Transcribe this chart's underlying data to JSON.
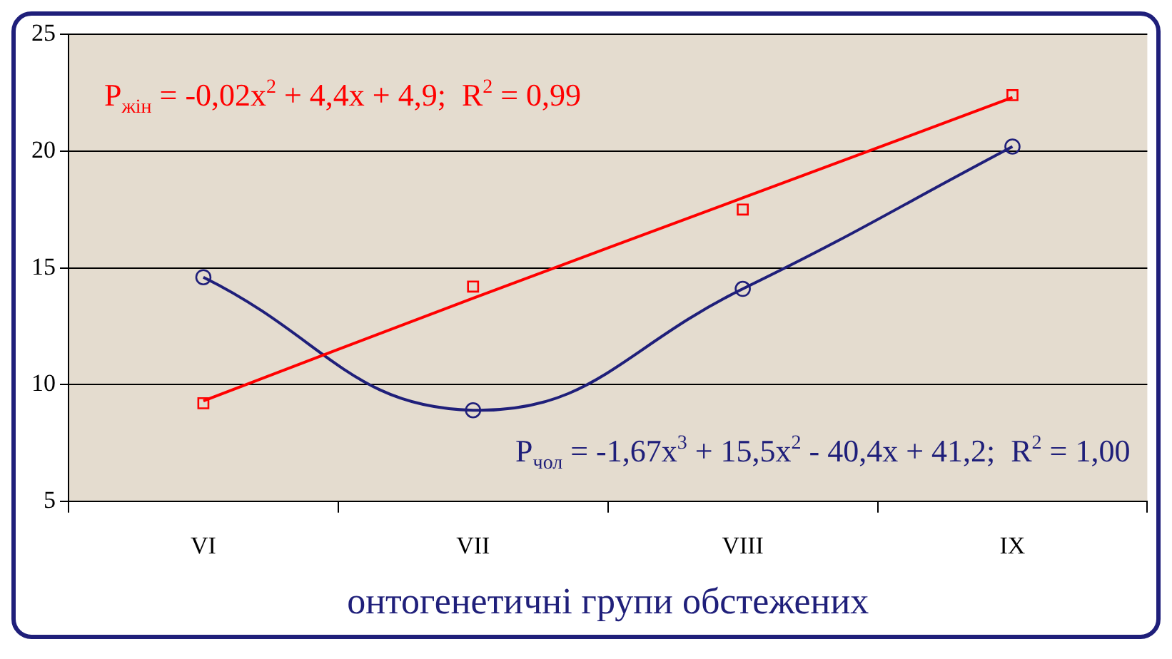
{
  "chart_data": {
    "type": "scatter",
    "xlabel": "онтогенетичні групи обстежених",
    "categories": [
      "VI",
      "VII",
      "VIII",
      "IX"
    ],
    "ylim": [
      5,
      25
    ],
    "yticks": [
      5,
      10,
      15,
      20,
      25
    ],
    "grid": "y",
    "legend": false,
    "series": [
      {
        "color": "#ff0000",
        "marker": "square",
        "values": [
          9.2,
          14.2,
          17.5,
          22.4
        ]
      },
      {
        "color": "#1f1f7a",
        "marker": "circle",
        "values": [
          14.6,
          8.9,
          14.1,
          20.2
        ]
      },
      {
        "type": "line",
        "color": "#ff0000",
        "marker": "none",
        "values": [
          9.3,
          13.7,
          18.0,
          22.3
        ]
      },
      {
        "type": "line",
        "color": "#1f1f7a",
        "marker": "none",
        "values": [
          14.6,
          8.9,
          14.1,
          20.2
        ]
      }
    ],
    "annotations": [
      "P$_{жін}$ = -0,02x$^{2}$ + 4,4x + 4,9;  R$^{2}$ = 0,99",
      "P$_{чол}$ = -1,67x$^{3}$ + 15,5x$^{2}$ - 40,4x + 41,2;  R$^{2}$ = 1,00"
    ]
  }
}
